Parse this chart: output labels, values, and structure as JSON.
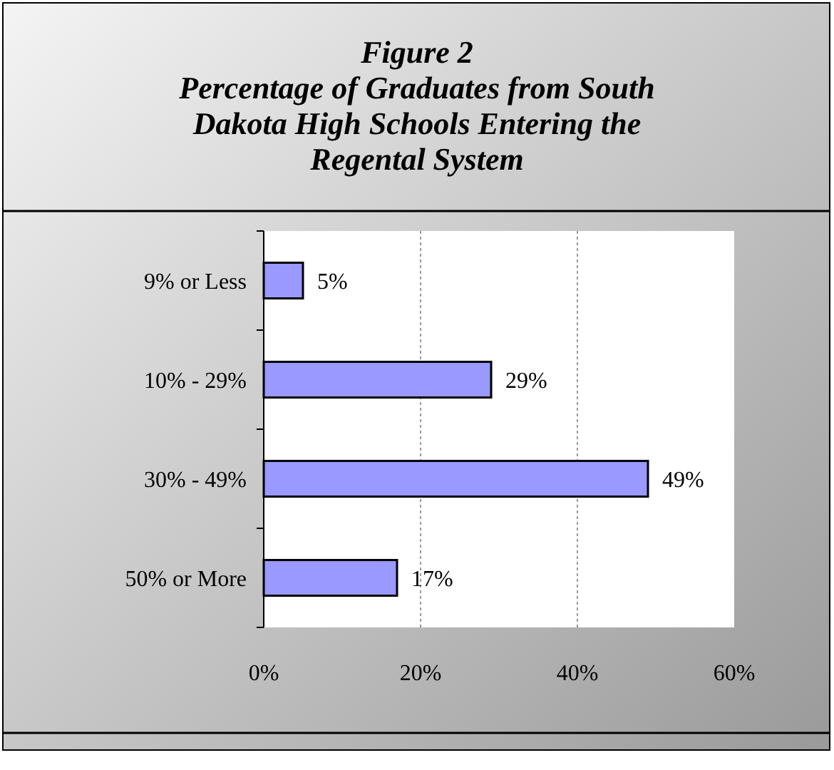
{
  "chart_data": {
    "type": "bar",
    "orientation": "horizontal",
    "title": "Figure 2",
    "subtitle": "Percentage of Graduates from South Dakota High Schools Entering the Regental System",
    "categories": [
      "9% or Less",
      "10% - 29%",
      "30% - 49%",
      "50% or More"
    ],
    "values": [
      5,
      29,
      49,
      17
    ],
    "value_labels": [
      "5%",
      "29%",
      "49%",
      "17%"
    ],
    "color": "#9999ff",
    "xlim": [
      0,
      60
    ],
    "xticks": [
      {
        "value": 0,
        "label": "0%"
      },
      {
        "value": 20,
        "label": "20%"
      },
      {
        "value": 40,
        "label": "40%"
      },
      {
        "value": 60,
        "label": "60%"
      }
    ],
    "grid": "x"
  }
}
